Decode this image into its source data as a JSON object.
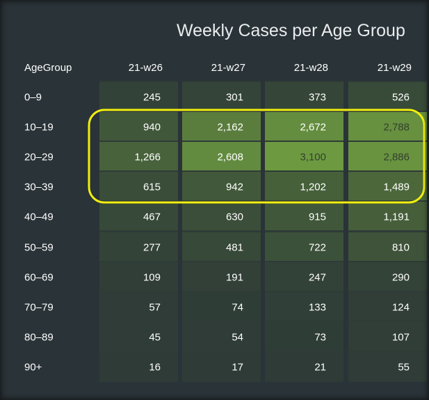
{
  "chart_data": {
    "type": "heatmap",
    "title": "Weekly Cases per Age Group",
    "row_header": "AgeGroup",
    "columns": [
      "21-w26",
      "21-w27",
      "21-w28",
      "21-w29"
    ],
    "rows": [
      "0–9",
      "10–19",
      "20–29",
      "30–39",
      "40–49",
      "50–59",
      "60–69",
      "70–79",
      "80–89",
      "90+"
    ],
    "values": [
      [
        245,
        301,
        373,
        526
      ],
      [
        940,
        2162,
        2672,
        2788
      ],
      [
        1266,
        2608,
        3100,
        2886
      ],
      [
        615,
        942,
        1202,
        1489
      ],
      [
        467,
        630,
        915,
        1191
      ],
      [
        277,
        481,
        722,
        810
      ],
      [
        109,
        191,
        247,
        290
      ],
      [
        57,
        74,
        133,
        124
      ],
      [
        45,
        54,
        73,
        107
      ],
      [
        16,
        17,
        21,
        55
      ]
    ],
    "value_range": [
      16,
      3100
    ],
    "highlight": {
      "rows": [
        "10–19",
        "20–29",
        "30–39"
      ],
      "color": "#f2ee0e"
    }
  },
  "colors": {
    "background": "#2a3338",
    "cell_low": "#2e3b37",
    "cell_high": "#6d9a40",
    "text_light": "#ffffff",
    "text_dark": "#33402f"
  }
}
